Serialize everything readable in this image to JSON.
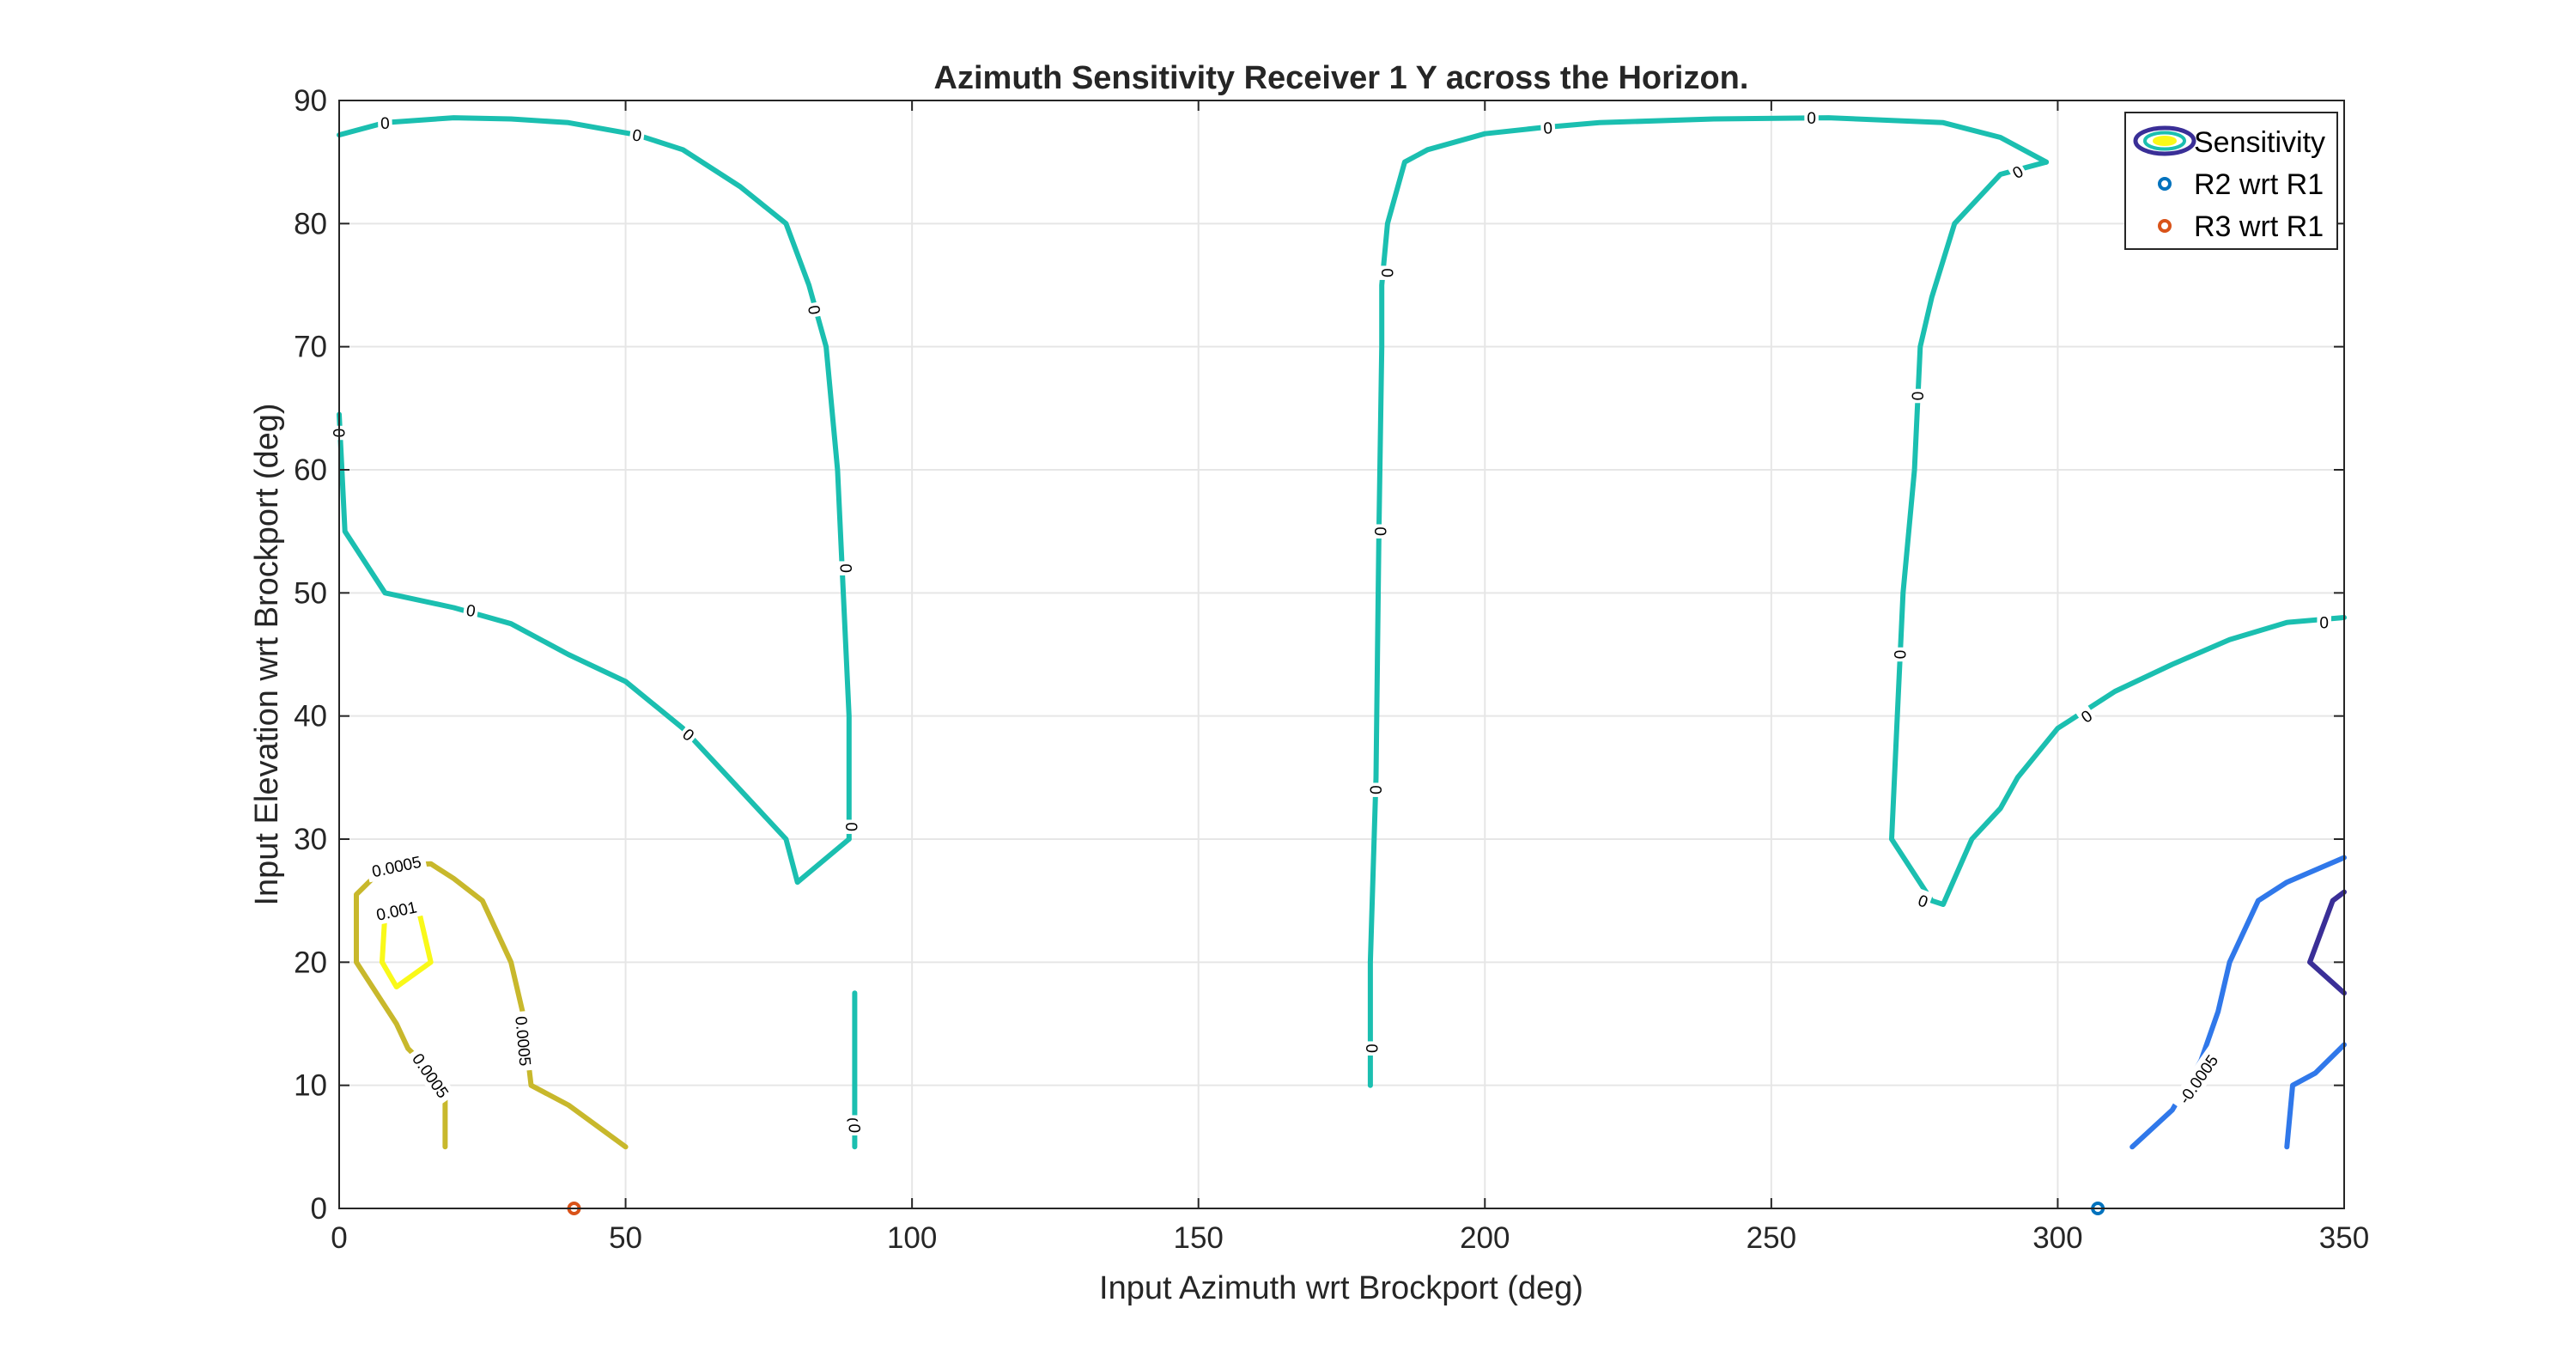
{
  "chart_data": {
    "type": "contour",
    "title": "Azimuth Sensitivity Receiver 1 Y across the Horizon.",
    "xlabel": "Input Azimuth wrt Brockport (deg)",
    "ylabel": "Input Elevation wrt Brockport (deg)",
    "xlim": [
      0,
      350
    ],
    "ylim": [
      0,
      90
    ],
    "xticks": [
      0,
      50,
      100,
      150,
      200,
      250,
      300,
      350
    ],
    "yticks": [
      0,
      10,
      20,
      30,
      40,
      50,
      60,
      70,
      80,
      90
    ],
    "grid": true,
    "legend_placement": "top-right",
    "legend": [
      {
        "label": "Sensitivity",
        "marker": "contour"
      },
      {
        "label": "R2 wrt R1",
        "marker": "circle",
        "color": "#0072bd"
      },
      {
        "label": "R3 wrt R1",
        "marker": "circle",
        "color": "#d95319"
      }
    ],
    "levels": [
      {
        "level": 0,
        "color": "#1bbfb0",
        "curves": [
          [
            [
              0,
              87.2
            ],
            [
              8,
              88.2
            ],
            [
              20,
              88.6
            ],
            [
              30,
              88.5
            ],
            [
              40,
              88.2
            ],
            [
              52,
              87.2
            ],
            [
              60,
              86
            ],
            [
              70,
              83
            ],
            [
              78,
              80
            ],
            [
              82,
              75
            ],
            [
              85,
              70
            ],
            [
              87,
              60
            ],
            [
              88,
              50
            ],
            [
              89,
              40
            ],
            [
              89,
              30
            ]
          ],
          [
            [
              0,
              64.5
            ],
            [
              1,
              55
            ],
            [
              8,
              50
            ],
            [
              20,
              48.8
            ],
            [
              30,
              47.5
            ],
            [
              40,
              45
            ],
            [
              50,
              42.8
            ],
            [
              60,
              39
            ],
            [
              68,
              35
            ],
            [
              78,
              30
            ],
            [
              80,
              26.5
            ],
            [
              89,
              30
            ]
          ],
          [
            [
              90,
              17.5
            ],
            [
              90,
              5
            ]
          ],
          [
            [
              180,
              10
            ],
            [
              180,
              20
            ],
            [
              181,
              35
            ],
            [
              181.5,
              55
            ],
            [
              182,
              70
            ],
            [
              182,
              75
            ],
            [
              183,
              80
            ],
            [
              186,
              85
            ],
            [
              190,
              86
            ],
            [
              200,
              87.3
            ],
            [
              210,
              87.8
            ],
            [
              220,
              88.2
            ],
            [
              240,
              88.5
            ],
            [
              260,
              88.6
            ],
            [
              280,
              88.2
            ],
            [
              290,
              87
            ],
            [
              298,
              85
            ]
          ],
          [
            [
              298,
              85
            ],
            [
              290,
              84
            ],
            [
              282,
              80
            ],
            [
              278,
              74
            ],
            [
              276,
              70
            ],
            [
              275,
              60
            ],
            [
              273,
              50
            ],
            [
              272,
              40
            ],
            [
              271,
              30
            ],
            [
              278,
              25
            ],
            [
              280,
              24.7
            ],
            [
              285,
              30
            ],
            [
              290,
              32.5
            ],
            [
              293,
              35
            ],
            [
              300,
              39
            ],
            [
              310,
              42
            ],
            [
              320,
              44.2
            ],
            [
              330,
              46.2
            ],
            [
              340,
              47.6
            ],
            [
              350,
              48
            ]
          ]
        ]
      },
      {
        "level": 0.0005,
        "color": "#c8b82c",
        "curves": [
          [
            [
              18.5,
              5
            ],
            [
              18.5,
              10
            ],
            [
              12,
              13
            ],
            [
              10,
              15
            ],
            [
              3,
              20
            ],
            [
              3,
              25.5
            ],
            [
              8,
              27.8
            ],
            [
              16,
              28
            ],
            [
              20,
              26.8
            ],
            [
              25,
              25
            ],
            [
              30,
              20
            ],
            [
              32,
              16
            ],
            [
              33.5,
              10
            ],
            [
              40,
              8.4
            ],
            [
              50,
              5
            ]
          ]
        ]
      },
      {
        "level": 0.001,
        "color": "#f9f919",
        "curves": [
          [
            [
              13.5,
              25
            ],
            [
              8,
              24
            ],
            [
              7.5,
              20
            ],
            [
              10,
              18
            ],
            [
              16,
              20
            ],
            [
              13.5,
              25
            ]
          ]
        ]
      },
      {
        "level": -0.0005,
        "color": "#3078ea",
        "curves": [
          [
            [
              313,
              5
            ],
            [
              320,
              8
            ],
            [
              325,
              12
            ],
            [
              328,
              16
            ],
            [
              330,
              20
            ],
            [
              335,
              25
            ],
            [
              340,
              26.5
            ],
            [
              350,
              28.5
            ]
          ],
          [
            [
              340,
              5
            ],
            [
              341,
              10
            ],
            [
              345,
              11
            ],
            [
              350,
              13.3
            ]
          ]
        ]
      },
      {
        "level": -0.001,
        "color": "#3a2f97",
        "curves": [
          [
            [
              350,
              25.7
            ],
            [
              348,
              25
            ],
            [
              344,
              20
            ],
            [
              350,
              17.5
            ]
          ]
        ]
      }
    ],
    "contour_labels": [
      {
        "text": "0",
        "x": 8,
        "y": 88.2,
        "angle": -2
      },
      {
        "text": "0",
        "x": 52,
        "y": 87.2,
        "angle": 8
      },
      {
        "text": "0",
        "x": 83,
        "y": 73,
        "angle": 80
      },
      {
        "text": "0",
        "x": 88.5,
        "y": 52,
        "angle": 90
      },
      {
        "text": "0",
        "x": 89.5,
        "y": 31,
        "angle": 90
      },
      {
        "text": "0",
        "x": 0,
        "y": 63,
        "angle": 90
      },
      {
        "text": "0",
        "x": 23,
        "y": 48.6,
        "angle": 8
      },
      {
        "text": "0",
        "x": 61,
        "y": 38.5,
        "angle": 40
      },
      {
        "text": "0",
        "x": 89.6,
        "y": 7,
        "angle": 90
      },
      {
        "text": "0",
        "x": 90,
        "y": 6.5,
        "angle": 90
      },
      {
        "text": "0",
        "x": 211,
        "y": 87.8,
        "angle": -3
      },
      {
        "text": "0",
        "x": 257,
        "y": 88.6,
        "angle": 0
      },
      {
        "text": "0",
        "x": 293,
        "y": 84.2,
        "angle": -30
      },
      {
        "text": "0",
        "x": 183,
        "y": 76,
        "angle": 90
      },
      {
        "text": "0",
        "x": 181.8,
        "y": 55,
        "angle": 90
      },
      {
        "text": "0",
        "x": 181,
        "y": 34,
        "angle": 90
      },
      {
        "text": "0",
        "x": 180.3,
        "y": 13,
        "angle": 90
      },
      {
        "text": "0",
        "x": 275.6,
        "y": 66,
        "angle": 90
      },
      {
        "text": "0",
        "x": 272.5,
        "y": 45,
        "angle": 90
      },
      {
        "text": "0",
        "x": 276.5,
        "y": 25,
        "angle": 20
      },
      {
        "text": "0",
        "x": 305,
        "y": 40,
        "angle": -35
      },
      {
        "text": "0",
        "x": 346.5,
        "y": 47.6,
        "angle": 0
      },
      {
        "text": "0.0005",
        "x": 10,
        "y": 27.8,
        "angle": -12
      },
      {
        "text": "0.001",
        "x": 10,
        "y": 24.2,
        "angle": -12
      },
      {
        "text": "0.0005",
        "x": 16,
        "y": 10.8,
        "angle": 55
      },
      {
        "text": "0.0005",
        "x": 32.2,
        "y": 13.6,
        "angle": 85
      },
      {
        "text": "-0.0005",
        "x": 324.5,
        "y": 10.5,
        "angle": -55
      }
    ],
    "points": [
      {
        "name": "R2 wrt R1",
        "x": 307,
        "y": 0,
        "color": "#0072bd"
      },
      {
        "name": "R3 wrt R1",
        "x": 41,
        "y": 0,
        "color": "#d95319"
      }
    ]
  }
}
